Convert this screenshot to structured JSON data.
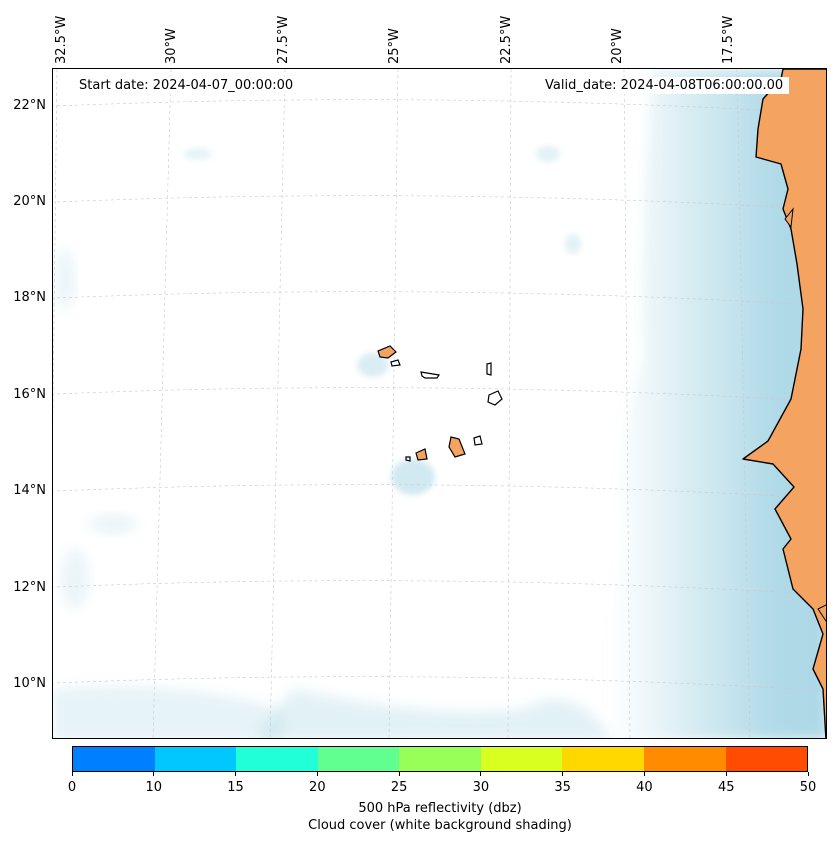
{
  "map": {
    "start_date": "Start date: 2024-04-07_00:00:00",
    "valid_date": "Valid_date: 2024-04-08T06:00:00.00",
    "lon_labels": [
      "32.5°W",
      "30°W",
      "27.5°W",
      "25°W",
      "22.5°W",
      "20°W",
      "17.5°W"
    ],
    "lat_labels": [
      "22°N",
      "20°N",
      "18°N",
      "16°N",
      "14°N",
      "12°N",
      "10°N"
    ],
    "land_color": "#f4a460",
    "cloud_color": "#add8e6",
    "features": [
      "African coastline (Mauritania, Senegal, Gambia, Guinea-Bissau)",
      "Cape Verde islands"
    ]
  },
  "colorbar": {
    "colors": [
      "#0080ff",
      "#00c8ff",
      "#20ffd8",
      "#60ff90",
      "#98ff58",
      "#d8ff20",
      "#ffd800",
      "#ff8c00",
      "#ff4c00"
    ],
    "tick_labels": [
      "0",
      "10",
      "15",
      "20",
      "25",
      "30",
      "35",
      "40",
      "45",
      "50"
    ],
    "label_line1": "500 hPa reflectivity (dbz)",
    "label_line2": "Cloud cover (white background shading)"
  }
}
